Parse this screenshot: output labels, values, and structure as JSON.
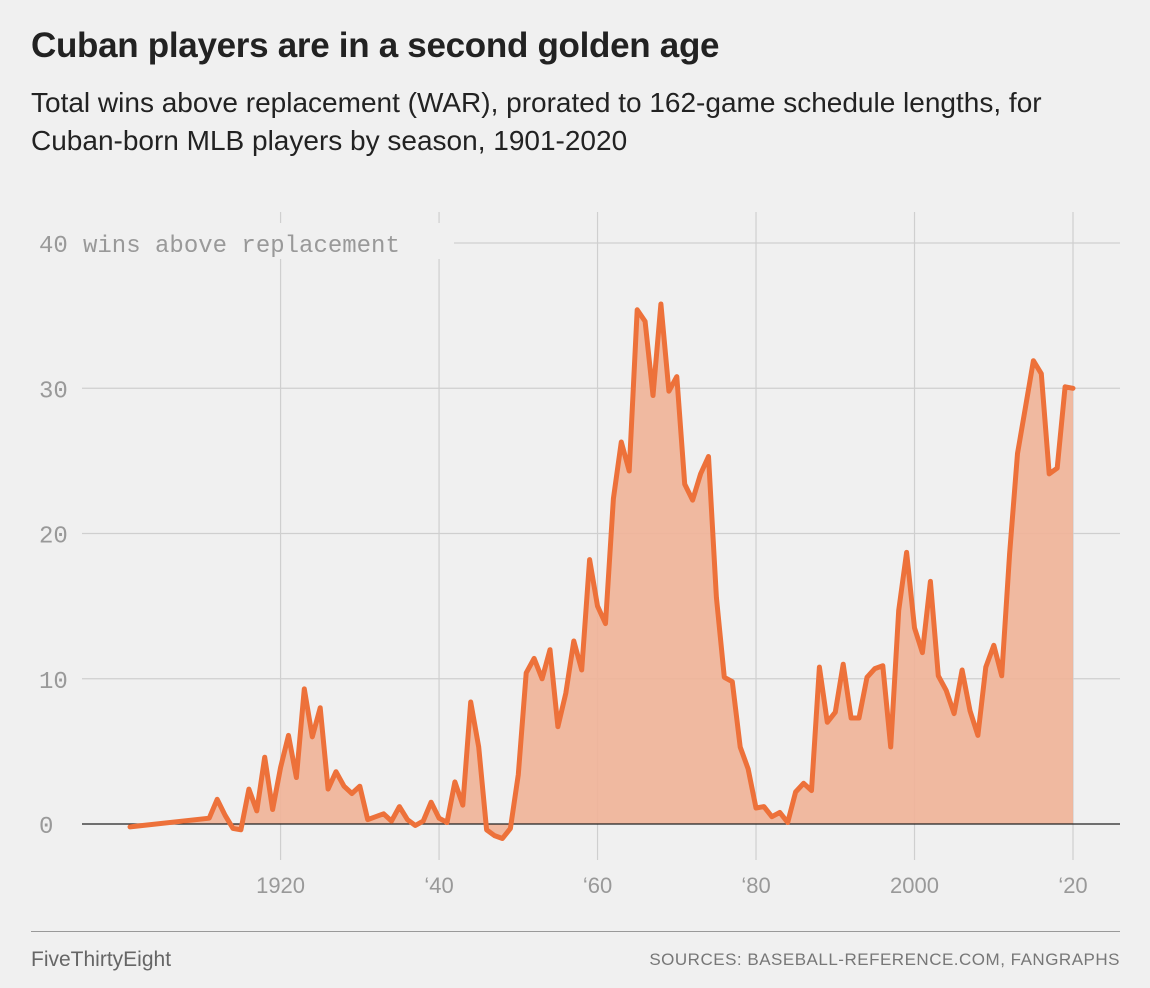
{
  "header": {
    "title": "Cuban players are in a second golden age",
    "subtitle": "Total wins above replacement (WAR), prorated to 162-game schedule lengths, for Cuban-born MLB players by season, 1901-2020"
  },
  "footer": {
    "brand": "FiveThirtyEight",
    "sources": "SOURCES: BASEBALL-REFERENCE.COM, FANGRAPHS"
  },
  "colors": {
    "line": "#ed713a",
    "fill": "#f0b397",
    "grid": "#cfcfcf",
    "zero": "#222222"
  },
  "chart_data": {
    "type": "area",
    "title": "Cuban players are in a second golden age",
    "ylabel": "wins above replacement",
    "xlim": [
      1901,
      2020
    ],
    "ylim": [
      0,
      40
    ],
    "grid": true,
    "x_ticks": [
      {
        "value": 1920,
        "label": "1920"
      },
      {
        "value": 1940,
        "label": "‘40"
      },
      {
        "value": 1960,
        "label": "‘60"
      },
      {
        "value": 1980,
        "label": "‘80"
      },
      {
        "value": 2000,
        "label": "2000"
      },
      {
        "value": 2020,
        "label": "‘20"
      }
    ],
    "y_ticks": [
      {
        "value": 0,
        "label": "0"
      },
      {
        "value": 10,
        "label": "10"
      },
      {
        "value": 20,
        "label": "20"
      },
      {
        "value": 30,
        "label": "30"
      },
      {
        "value": 40,
        "label": "40"
      }
    ],
    "series": [
      {
        "x": [
          1901,
          1911,
          1912,
          1913,
          1914,
          1915,
          1916,
          1917,
          1918,
          1919,
          1920,
          1921,
          1922,
          1923,
          1924,
          1925,
          1926,
          1927,
          1928,
          1929,
          1930,
          1931,
          1932,
          1933,
          1934,
          1935,
          1936,
          1937,
          1938,
          1939,
          1940,
          1941,
          1942,
          1943,
          1944,
          1945,
          1946,
          1947,
          1948,
          1949,
          1950,
          1951,
          1952,
          1953,
          1954,
          1955,
          1956,
          1957,
          1958,
          1959,
          1960,
          1961,
          1962,
          1963,
          1964,
          1965,
          1966,
          1967,
          1968,
          1969,
          1970,
          1971,
          1972,
          1973,
          1974,
          1975,
          1976,
          1977,
          1978,
          1979,
          1980,
          1981,
          1982,
          1983,
          1984,
          1985,
          1986,
          1987,
          1988,
          1989,
          1990,
          1991,
          1992,
          1993,
          1994,
          1995,
          1996,
          1997,
          1998,
          1999,
          2000,
          2001,
          2002,
          2003,
          2004,
          2005,
          2006,
          2007,
          2008,
          2009,
          2010,
          2011,
          2012,
          2013,
          2014,
          2015,
          2016,
          2017,
          2018,
          2019,
          2020
        ],
        "y": [
          -0.2,
          0.4,
          1.7,
          0.6,
          -0.3,
          -0.4,
          2.4,
          0.9,
          4.6,
          1.0,
          3.9,
          6.1,
          3.2,
          9.3,
          6.0,
          8.0,
          2.4,
          3.6,
          2.6,
          2.1,
          2.6,
          0.3,
          0.5,
          0.7,
          0.2,
          1.2,
          0.3,
          -0.1,
          0.2,
          1.5,
          0.4,
          0.1,
          2.9,
          1.3,
          8.4,
          5.3,
          -0.4,
          -0.8,
          -1.0,
          -0.3,
          3.4,
          10.4,
          11.4,
          10.0,
          12.0,
          6.7,
          9.0,
          12.6,
          10.6,
          18.2,
          15.0,
          13.8,
          22.4,
          26.3,
          24.3,
          35.4,
          34.6,
          29.5,
          35.8,
          29.8,
          30.8,
          23.4,
          22.3,
          24.1,
          25.3,
          15.6,
          10.1,
          9.8,
          5.3,
          3.8,
          1.1,
          1.2,
          0.5,
          0.8,
          0.1,
          2.2,
          2.8,
          2.3,
          10.8,
          7.0,
          7.7,
          11.0,
          7.3,
          7.3,
          10.1,
          10.7,
          10.9,
          5.3,
          14.7,
          18.7,
          13.5,
          11.8,
          16.7,
          10.2,
          9.2,
          7.6,
          10.6,
          7.8,
          6.1,
          10.8,
          12.3,
          10.2,
          18.6,
          25.5,
          28.7,
          31.9,
          31.0,
          24.1,
          24.5,
          30.1,
          30.0
        ]
      }
    ]
  }
}
